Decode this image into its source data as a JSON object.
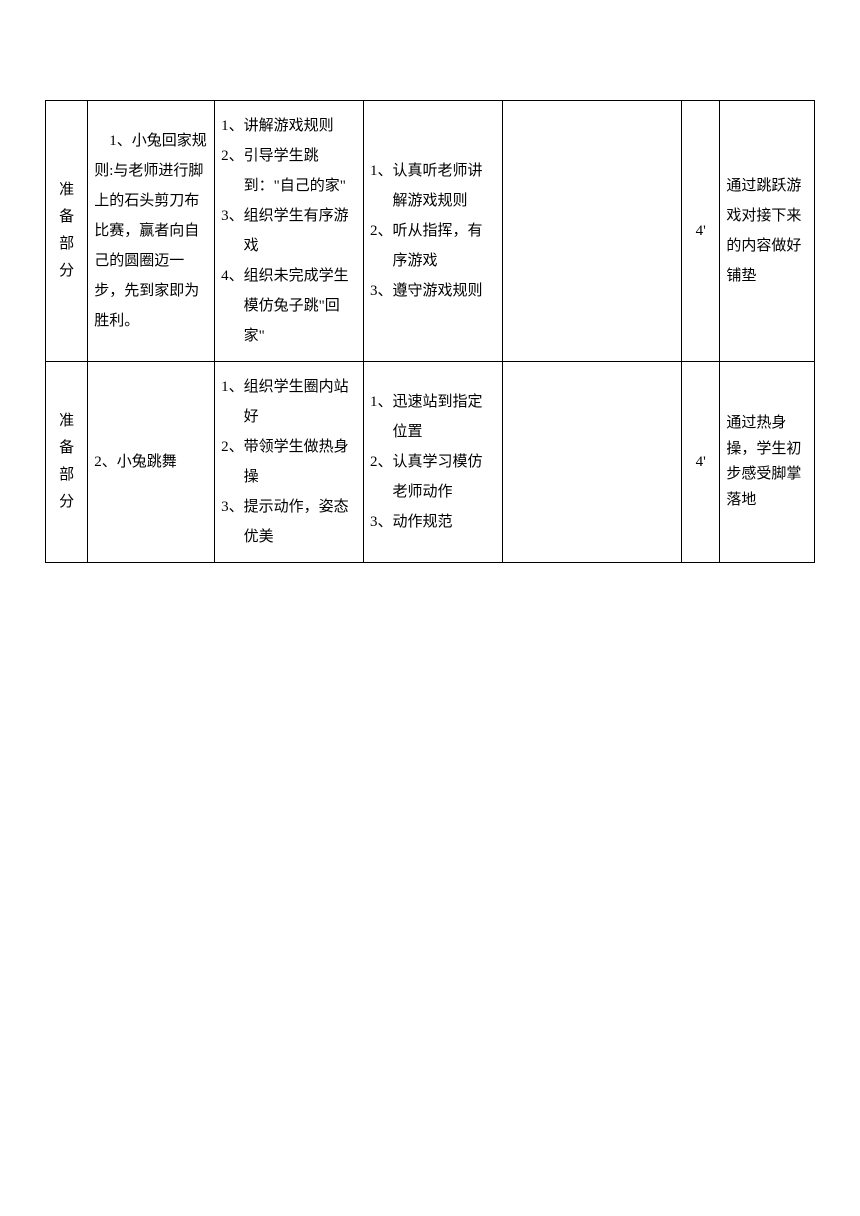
{
  "table": {
    "columns": {
      "col1_width": 42,
      "col2_width": 126,
      "col3_width": 148,
      "col4_width": 138,
      "col5_width": 178,
      "col6_width": 38,
      "col7_width": 94
    },
    "rows": [
      {
        "section": "准备部分",
        "content": "　1、小兔回家规则:与老师进行脚上的石头剪刀布比赛，赢者向自己的圆圈迈一步，先到家即为胜利。",
        "teacher_items": [
          {
            "num": "1、",
            "text": "讲解游戏规则"
          },
          {
            "num": "2、",
            "text": "引导学生跳到：\"自己的家\""
          },
          {
            "num": "3、",
            "text": "组织学生有序游戏"
          },
          {
            "num": "4、",
            "text": "组织未完成学生模仿兔子跳\"回家\""
          }
        ],
        "student_items": [
          {
            "num": "1、",
            "text": "认真听老师讲解游戏规则"
          },
          {
            "num": "2、",
            "text": "听从指挥，有序游戏"
          },
          {
            "num": "3、",
            "text": "遵守游戏规则"
          }
        ],
        "blank": "",
        "time": "4'",
        "note": "通过跳跃游戏对接下来的内容做好铺垫"
      },
      {
        "section": "准备部分",
        "content": "2、小兔跳舞",
        "teacher_items": [
          {
            "num": "1、",
            "text": "组织学生圈内站好"
          },
          {
            "num": "2、",
            "text": "带领学生做热身操"
          },
          {
            "num": "3、",
            "text": "提示动作，姿态优美"
          }
        ],
        "student_items": [
          {
            "num": "1、",
            "text": "迅速站到指定位置"
          },
          {
            "num": "2、",
            "text": "认真学习模仿老师动作"
          },
          {
            "num": "3、",
            "text": "动作规范"
          }
        ],
        "blank": "",
        "time": "4'",
        "note": "通过热身操，学生初步感受脚掌落地"
      }
    ],
    "styling": {
      "border_color": "#000000",
      "background_color": "#ffffff",
      "font_size": 15,
      "line_height": 2.0,
      "text_color": "#000000"
    }
  }
}
